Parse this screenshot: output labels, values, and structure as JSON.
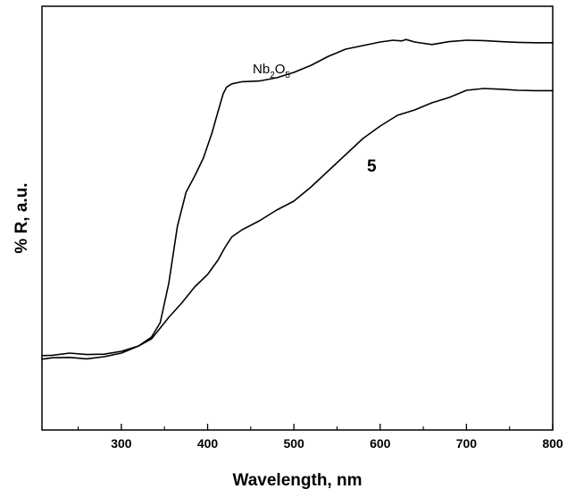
{
  "chart_data": {
    "type": "line",
    "title": "",
    "xlabel": "Wavelength, nm",
    "ylabel": "% R, a.u.",
    "xlim": [
      208,
      800
    ],
    "ylim": [
      0,
      100
    ],
    "x_ticks": [
      300,
      400,
      500,
      600,
      700,
      800
    ],
    "x_tick_labels": [
      "300",
      "400",
      "500",
      "600",
      "700",
      "800"
    ],
    "y_tick_labels_shown": false,
    "grid": false,
    "legend": "none (series labelled directly on the curves)",
    "series": [
      {
        "name": "Nb2O5",
        "label_main": "Nb",
        "label_sub1": "2",
        "label_mid": "O",
        "label_sub2": "5",
        "x": [
          208,
          220,
          240,
          260,
          280,
          300,
          320,
          335,
          345,
          355,
          365,
          375,
          385,
          395,
          405,
          412,
          418,
          422,
          428,
          440,
          460,
          480,
          500,
          520,
          540,
          560,
          580,
          600,
          615,
          625,
          630,
          640,
          660,
          680,
          700,
          720,
          740,
          760,
          780,
          800
        ],
        "y": [
          11.8,
          11.9,
          12.5,
          12.1,
          12.2,
          13.0,
          14.5,
          17.0,
          21.0,
          32.0,
          48.0,
          57.5,
          62.0,
          67.0,
          74.0,
          80.0,
          85.0,
          86.9,
          87.8,
          88.4,
          88.6,
          89.5,
          91.0,
          93.0,
          95.5,
          97.5,
          98.5,
          99.5,
          100.0,
          99.8,
          100.2,
          99.5,
          98.8,
          99.6,
          100.0,
          99.9,
          99.6,
          99.4,
          99.3,
          99.3
        ]
      },
      {
        "name": "5",
        "label_main": "5",
        "x": [
          208,
          220,
          240,
          260,
          280,
          300,
          320,
          335,
          345,
          355,
          370,
          385,
          400,
          412,
          420,
          428,
          440,
          460,
          480,
          500,
          520,
          540,
          560,
          580,
          600,
          620,
          640,
          660,
          680,
          700,
          720,
          740,
          760,
          780,
          800
        ],
        "y": [
          10.8,
          11.2,
          11.3,
          10.9,
          11.5,
          12.5,
          14.5,
          16.5,
          19.5,
          22.5,
          26.5,
          31.0,
          34.5,
          38.5,
          42.0,
          45.0,
          47.0,
          49.5,
          52.5,
          55.0,
          59.0,
          63.5,
          68.0,
          72.5,
          76.0,
          79.0,
          80.5,
          82.5,
          84.0,
          86.0,
          86.5,
          86.3,
          86.0,
          85.9,
          85.9
        ]
      }
    ]
  }
}
